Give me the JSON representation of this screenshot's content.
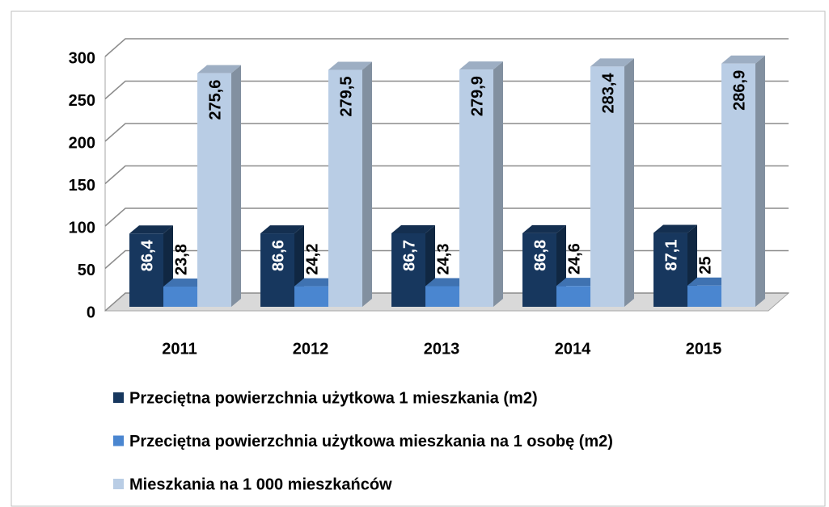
{
  "chart_data": {
    "type": "bar3d",
    "categories": [
      "2011",
      "2012",
      "2013",
      "2014",
      "2015"
    ],
    "series": [
      {
        "name": "Przeciętna powierzchnia użytkowa 1 mieszkania (m2)",
        "color": "#17375e",
        "values": [
          86.4,
          86.6,
          86.7,
          86.8,
          87.1
        ],
        "value_labels": [
          "86,4",
          "86,6",
          "86,7",
          "86,8",
          "87,1"
        ]
      },
      {
        "name": "Przeciętna powierzchnia użytkowa mieszkania na 1 osobę (m2)",
        "color": "#4a86d0",
        "values": [
          23.8,
          24.2,
          24.3,
          24.6,
          25
        ],
        "value_labels": [
          "23,8",
          "24,2",
          "24,3",
          "24,6",
          "25"
        ]
      },
      {
        "name": "Mieszkania na 1 000 mieszkańców",
        "color": "#b9cde5",
        "values": [
          275.6,
          279.5,
          279.9,
          283.4,
          286.9
        ],
        "value_labels": [
          "275,6",
          "279,5",
          "279,9",
          "283,4",
          "286,9"
        ]
      }
    ],
    "ylim": [
      0,
      300
    ],
    "yticks": [
      0,
      50,
      100,
      150,
      200,
      250,
      300
    ],
    "grid": true,
    "legend": "bottom"
  }
}
